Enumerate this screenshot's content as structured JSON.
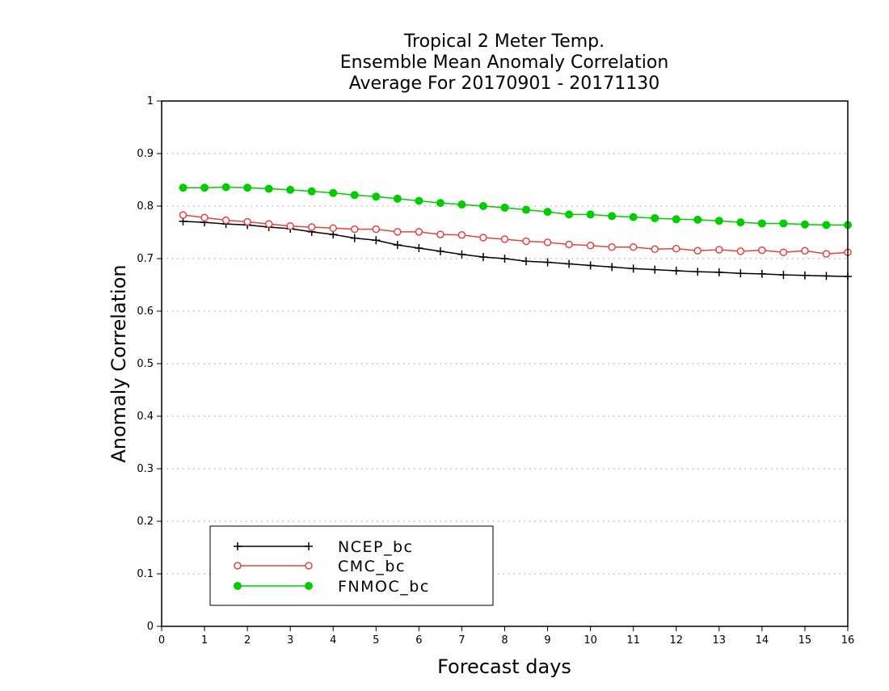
{
  "chart_data": {
    "type": "line",
    "title": [
      "Tropical 2 Meter Temp.",
      "Ensemble Mean Anomaly Correlation",
      "Average For 20170901 - 20171130"
    ],
    "xlabel": "Forecast days",
    "ylabel": "Anomaly Correlation",
    "xlim": [
      0,
      16
    ],
    "ylim": [
      0,
      1
    ],
    "x_ticks": [
      "0",
      "1",
      "2",
      "3",
      "4",
      "5",
      "6",
      "7",
      "8",
      "9",
      "10",
      "11",
      "12",
      "13",
      "14",
      "15",
      "16"
    ],
    "y_ticks": [
      "0",
      "0.1",
      "0.2",
      "0.3",
      "0.4",
      "0.5",
      "0.6",
      "0.7",
      "0.8",
      "0.9",
      "1"
    ],
    "grid": "horizontal dotted",
    "legend_position": "bottom-left",
    "x": [
      0.5,
      1,
      1.5,
      2,
      2.5,
      3,
      3.5,
      4,
      4.5,
      5,
      5.5,
      6,
      6.5,
      7,
      7.5,
      8,
      8.5,
      9,
      9.5,
      10,
      10.5,
      11,
      11.5,
      12,
      12.5,
      13,
      13.5,
      14,
      14.5,
      15,
      15.5,
      16
    ],
    "series": [
      {
        "name": "NCEP_bc",
        "color": "#000000",
        "marker": "plus",
        "values": [
          0.771,
          0.769,
          0.766,
          0.764,
          0.76,
          0.757,
          0.751,
          0.746,
          0.739,
          0.735,
          0.726,
          0.72,
          0.714,
          0.708,
          0.703,
          0.7,
          0.695,
          0.693,
          0.69,
          0.687,
          0.684,
          0.681,
          0.679,
          0.677,
          0.675,
          0.674,
          0.672,
          0.671,
          0.669,
          0.668,
          0.667,
          0.666
        ]
      },
      {
        "name": "CMC_bc",
        "color": "#e8413e",
        "marker": "open-circle",
        "values": [
          0.783,
          0.778,
          0.773,
          0.77,
          0.766,
          0.762,
          0.76,
          0.758,
          0.756,
          0.756,
          0.751,
          0.751,
          0.746,
          0.745,
          0.74,
          0.737,
          0.733,
          0.731,
          0.727,
          0.725,
          0.722,
          0.722,
          0.718,
          0.719,
          0.715,
          0.717,
          0.714,
          0.716,
          0.712,
          0.715,
          0.709,
          0.712
        ]
      },
      {
        "name": "FNMOC_bc",
        "color": "#00cc00",
        "marker": "filled-circle",
        "values": [
          0.835,
          0.835,
          0.836,
          0.835,
          0.833,
          0.831,
          0.828,
          0.825,
          0.821,
          0.818,
          0.814,
          0.81,
          0.806,
          0.803,
          0.8,
          0.797,
          0.793,
          0.789,
          0.784,
          0.784,
          0.781,
          0.779,
          0.777,
          0.775,
          0.774,
          0.772,
          0.769,
          0.767,
          0.767,
          0.765,
          0.764,
          0.764
        ]
      }
    ]
  }
}
